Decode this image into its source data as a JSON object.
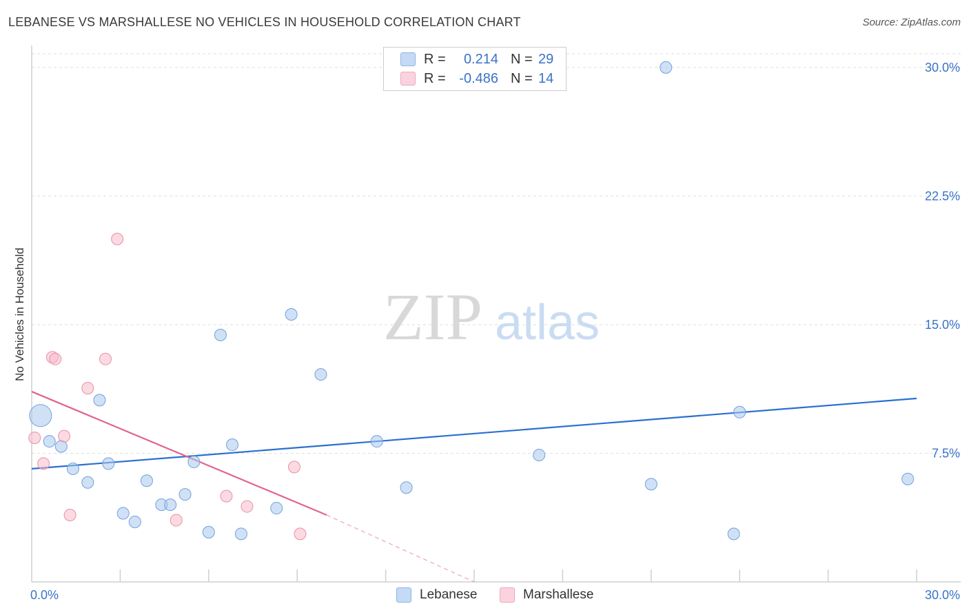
{
  "title": "LEBANESE VS MARSHALLESE NO VEHICLES IN HOUSEHOLD CORRELATION CHART",
  "source": "Source: ZipAtlas.com",
  "watermark": {
    "zip": "ZIP",
    "atlas": "atlas"
  },
  "legend": {
    "r_label": "R =",
    "n_label": "N =",
    "rows": [
      {
        "name": "Lebanese",
        "r": "0.214",
        "n": "29",
        "color": "#a9c8ef"
      },
      {
        "name": "Marshallese",
        "r": "-0.486",
        "n": "14",
        "color": "#f7bccb"
      }
    ]
  },
  "chart_data": {
    "type": "scatter",
    "title": "LEBANESE VS MARSHALLESE NO VEHICLES IN HOUSEHOLD CORRELATION CHART",
    "xlabel": "",
    "ylabel": "No Vehicles in Household",
    "xlim": [
      0,
      30
    ],
    "ylim": [
      0,
      30.8
    ],
    "x_tick_labels": [
      "0.0%",
      "30.0%"
    ],
    "y_ticks": [
      7.5,
      15.0,
      22.5,
      30.0
    ],
    "y_tick_labels": [
      "7.5%",
      "15.0%",
      "22.5%",
      "30.0%"
    ],
    "grid": true,
    "legend_position": "top-center",
    "series": [
      {
        "name": "Lebanese",
        "color": "#a9c8ef",
        "stroke": "#6fa0dc",
        "points": [
          {
            "x": 0.3,
            "y": 9.7,
            "size": "large"
          },
          {
            "x": 0.6,
            "y": 8.2
          },
          {
            "x": 1.0,
            "y": 7.9
          },
          {
            "x": 1.4,
            "y": 6.6
          },
          {
            "x": 1.9,
            "y": 5.8
          },
          {
            "x": 2.3,
            "y": 10.6
          },
          {
            "x": 2.6,
            "y": 6.9
          },
          {
            "x": 3.1,
            "y": 4.0
          },
          {
            "x": 3.5,
            "y": 3.5
          },
          {
            "x": 3.9,
            "y": 5.9
          },
          {
            "x": 4.4,
            "y": 4.5
          },
          {
            "x": 4.7,
            "y": 4.5
          },
          {
            "x": 5.2,
            "y": 5.1
          },
          {
            "x": 5.5,
            "y": 7.0
          },
          {
            "x": 6.0,
            "y": 2.9
          },
          {
            "x": 6.4,
            "y": 14.4
          },
          {
            "x": 6.8,
            "y": 8.0
          },
          {
            "x": 7.1,
            "y": 2.8
          },
          {
            "x": 8.3,
            "y": 4.3
          },
          {
            "x": 8.8,
            "y": 15.6
          },
          {
            "x": 9.8,
            "y": 12.1
          },
          {
            "x": 11.7,
            "y": 8.2
          },
          {
            "x": 12.7,
            "y": 5.5
          },
          {
            "x": 17.2,
            "y": 7.4
          },
          {
            "x": 21.0,
            "y": 5.7
          },
          {
            "x": 21.5,
            "y": 30.0
          },
          {
            "x": 23.8,
            "y": 2.8
          },
          {
            "x": 24.0,
            "y": 9.9
          },
          {
            "x": 29.7,
            "y": 6.0
          }
        ],
        "trend": {
          "x0": 0.0,
          "y0": 6.6,
          "x1": 30.0,
          "y1": 10.7
        }
      },
      {
        "name": "Marshallese",
        "color": "#f7bccb",
        "stroke": "#e98fa8",
        "points": [
          {
            "x": 0.1,
            "y": 8.4
          },
          {
            "x": 0.4,
            "y": 6.9
          },
          {
            "x": 0.7,
            "y": 13.1
          },
          {
            "x": 0.8,
            "y": 13.0
          },
          {
            "x": 1.1,
            "y": 8.5
          },
          {
            "x": 1.3,
            "y": 3.9
          },
          {
            "x": 1.9,
            "y": 11.3
          },
          {
            "x": 2.5,
            "y": 13.0
          },
          {
            "x": 2.9,
            "y": 20.0
          },
          {
            "x": 4.9,
            "y": 3.6
          },
          {
            "x": 6.6,
            "y": 5.0
          },
          {
            "x": 7.3,
            "y": 4.4
          },
          {
            "x": 8.9,
            "y": 6.7
          },
          {
            "x": 9.1,
            "y": 2.8
          }
        ],
        "trend": {
          "x0": 0.0,
          "y0": 11.1,
          "x1": 10.0,
          "y1": 3.9
        },
        "trend_extension": {
          "x0": 10.0,
          "y0": 3.9,
          "x1": 15.0,
          "y1": 0.0
        }
      }
    ]
  }
}
